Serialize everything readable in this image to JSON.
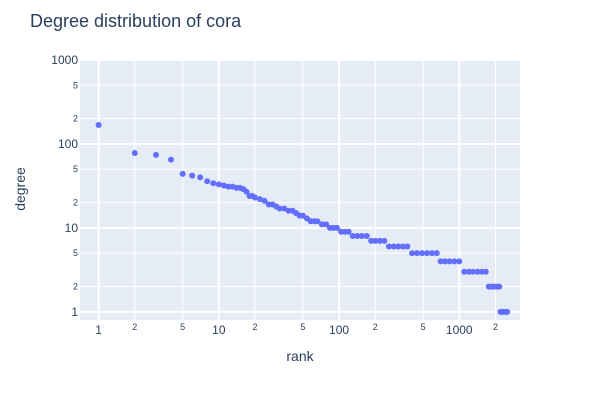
{
  "chart_data": {
    "type": "scatter",
    "title": "Degree distribution of cora",
    "xlabel": "rank",
    "ylabel": "degree",
    "x_scale": "log",
    "y_scale": "log",
    "xlim": [
      0.7,
      3200
    ],
    "ylim": [
      0.8,
      1000
    ],
    "grid": true,
    "legend": "none",
    "marker_color": "#636efa",
    "plot_bg": "#e5ecf6",
    "x_major_ticks": [
      {
        "value": 1,
        "label": "1"
      },
      {
        "value": 10,
        "label": "10"
      },
      {
        "value": 100,
        "label": "100"
      },
      {
        "value": 1000,
        "label": "1000"
      }
    ],
    "x_minor_ticks": [
      {
        "value": 2,
        "label": "2"
      },
      {
        "value": 5,
        "label": "5"
      },
      {
        "value": 20,
        "label": "2"
      },
      {
        "value": 50,
        "label": "5"
      },
      {
        "value": 200,
        "label": "2"
      },
      {
        "value": 500,
        "label": "5"
      },
      {
        "value": 2000,
        "label": "2"
      }
    ],
    "y_major_ticks": [
      {
        "value": 1,
        "label": "1"
      },
      {
        "value": 10,
        "label": "10"
      },
      {
        "value": 100,
        "label": "100"
      },
      {
        "value": 1000,
        "label": "1000"
      }
    ],
    "y_minor_ticks": [
      {
        "value": 2,
        "label": "2"
      },
      {
        "value": 5,
        "label": "5"
      },
      {
        "value": 20,
        "label": "2"
      },
      {
        "value": 50,
        "label": "5"
      },
      {
        "value": 200,
        "label": "2"
      },
      {
        "value": 500,
        "label": "5"
      }
    ],
    "points": [
      [
        1,
        168
      ],
      [
        2,
        78
      ],
      [
        3,
        74
      ],
      [
        4,
        65
      ],
      [
        5,
        44
      ],
      [
        6,
        42
      ],
      [
        7,
        40
      ],
      [
        8,
        36
      ],
      [
        9,
        34
      ],
      [
        10,
        33
      ],
      [
        11,
        32
      ],
      [
        12,
        31
      ],
      [
        13,
        31
      ],
      [
        14,
        30
      ],
      [
        15,
        30
      ],
      [
        16,
        29
      ],
      [
        17,
        27
      ],
      [
        18,
        24
      ],
      [
        19,
        24
      ],
      [
        20,
        23
      ],
      [
        22,
        22
      ],
      [
        24,
        21
      ],
      [
        26,
        19
      ],
      [
        28,
        19
      ],
      [
        30,
        18
      ],
      [
        32,
        17
      ],
      [
        35,
        17
      ],
      [
        38,
        16
      ],
      [
        41,
        16
      ],
      [
        44,
        15
      ],
      [
        47,
        14
      ],
      [
        50,
        14
      ],
      [
        54,
        13
      ],
      [
        58,
        12
      ],
      [
        62,
        12
      ],
      [
        66,
        12
      ],
      [
        72,
        11
      ],
      [
        78,
        11
      ],
      [
        84,
        10
      ],
      [
        90,
        10
      ],
      [
        96,
        10
      ],
      [
        104,
        9
      ],
      [
        112,
        9
      ],
      [
        120,
        9
      ],
      [
        130,
        8
      ],
      [
        142,
        8
      ],
      [
        155,
        8
      ],
      [
        170,
        8
      ],
      [
        185,
        7
      ],
      [
        200,
        7
      ],
      [
        218,
        7
      ],
      [
        238,
        7
      ],
      [
        260,
        6
      ],
      [
        285,
        6
      ],
      [
        310,
        6
      ],
      [
        340,
        6
      ],
      [
        370,
        6
      ],
      [
        405,
        5
      ],
      [
        445,
        5
      ],
      [
        490,
        5
      ],
      [
        540,
        5
      ],
      [
        595,
        5
      ],
      [
        650,
        5
      ],
      [
        700,
        4
      ],
      [
        760,
        4
      ],
      [
        830,
        4
      ],
      [
        910,
        4
      ],
      [
        1000,
        4
      ],
      [
        1100,
        3
      ],
      [
        1200,
        3
      ],
      [
        1300,
        3
      ],
      [
        1420,
        3
      ],
      [
        1540,
        3
      ],
      [
        1660,
        3
      ],
      [
        1760,
        2
      ],
      [
        1860,
        2
      ],
      [
        1960,
        2
      ],
      [
        2060,
        2
      ],
      [
        2150,
        2
      ],
      [
        2200,
        1
      ],
      [
        2270,
        1
      ],
      [
        2350,
        1
      ],
      [
        2430,
        1
      ],
      [
        2500,
        1
      ]
    ]
  }
}
